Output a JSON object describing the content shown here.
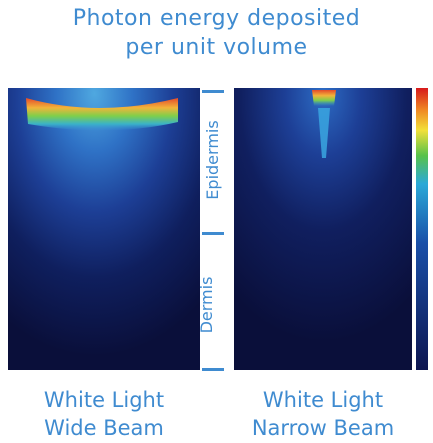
{
  "title": {
    "line1": "Photon energy deposited",
    "line2": "per unit volume"
  },
  "layers": {
    "epidermis": "Epidermis",
    "dermis": "Dermis"
  },
  "panels": [
    {
      "caption_line1": "White Light",
      "caption_line2": "Wide Beam"
    },
    {
      "caption_line1": "White Light",
      "caption_line2": "Narrow Beam"
    }
  ],
  "colorbar": {
    "colors": [
      "#d7191c",
      "#f08a24",
      "#f2e03a",
      "#57c24a",
      "#2aa9d8",
      "#1a4fa8",
      "#0d1550"
    ]
  }
}
